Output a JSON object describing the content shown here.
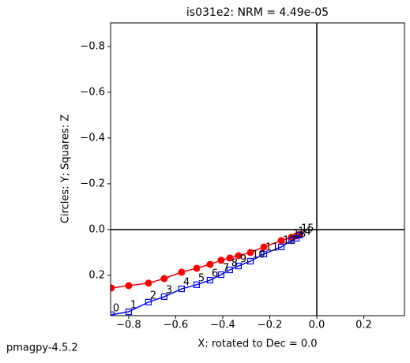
{
  "chart_data": {
    "type": "zijderveld",
    "title": "is031e2: NRM =  4.49e-05",
    "xlabel": "X: rotated to Dec =     0.0",
    "ylabel": "Circles: Y; Squares: Z",
    "footer": "pmagpy-4.5.2",
    "xlim": [
      -0.877,
      0.373
    ],
    "ylim": [
      0.376,
      -0.903
    ],
    "xticks": [
      {
        "value": -0.8,
        "label": "−0.8"
      },
      {
        "value": -0.6,
        "label": "−0.6"
      },
      {
        "value": -0.4,
        "label": "−0.4"
      },
      {
        "value": -0.2,
        "label": "−0.2"
      },
      {
        "value": 0,
        "label": "0.0"
      },
      0.2
    ],
    "yticks": [
      {
        "value": -0.8,
        "label": "−0.8"
      },
      {
        "value": -0.6,
        "label": "−0.6"
      },
      {
        "value": -0.4,
        "label": "−0.4"
      },
      {
        "value": -0.2,
        "label": "−0.2"
      },
      {
        "value": 0,
        "label": "0.0"
      },
      0.2
    ],
    "x": [
      -0.874,
      -0.8,
      -0.716,
      -0.649,
      -0.575,
      -0.511,
      -0.454,
      -0.407,
      -0.37,
      -0.333,
      -0.282,
      -0.225,
      -0.151,
      -0.108,
      -0.087,
      -0.074
    ],
    "point_labels": [
      0,
      1,
      2,
      3,
      4,
      5,
      6,
      7,
      8,
      9,
      10,
      11,
      12,
      13,
      14,
      15
    ],
    "series": [
      {
        "name": "Y",
        "color": "#ff0000",
        "marker": "circle",
        "values": [
          0.255,
          0.245,
          0.234,
          0.214,
          0.186,
          0.169,
          0.152,
          0.134,
          0.124,
          0.114,
          0.1,
          0.076,
          0.048,
          0.034,
          0.028,
          0.021
        ]
      },
      {
        "name": "Z",
        "color": "#0000ff",
        "marker": "square",
        "values": [
          0.372,
          0.359,
          0.317,
          0.293,
          0.259,
          0.241,
          0.221,
          0.197,
          0.176,
          0.159,
          0.138,
          0.107,
          0.076,
          0.048,
          0.038,
          0.024
        ]
      }
    ]
  }
}
